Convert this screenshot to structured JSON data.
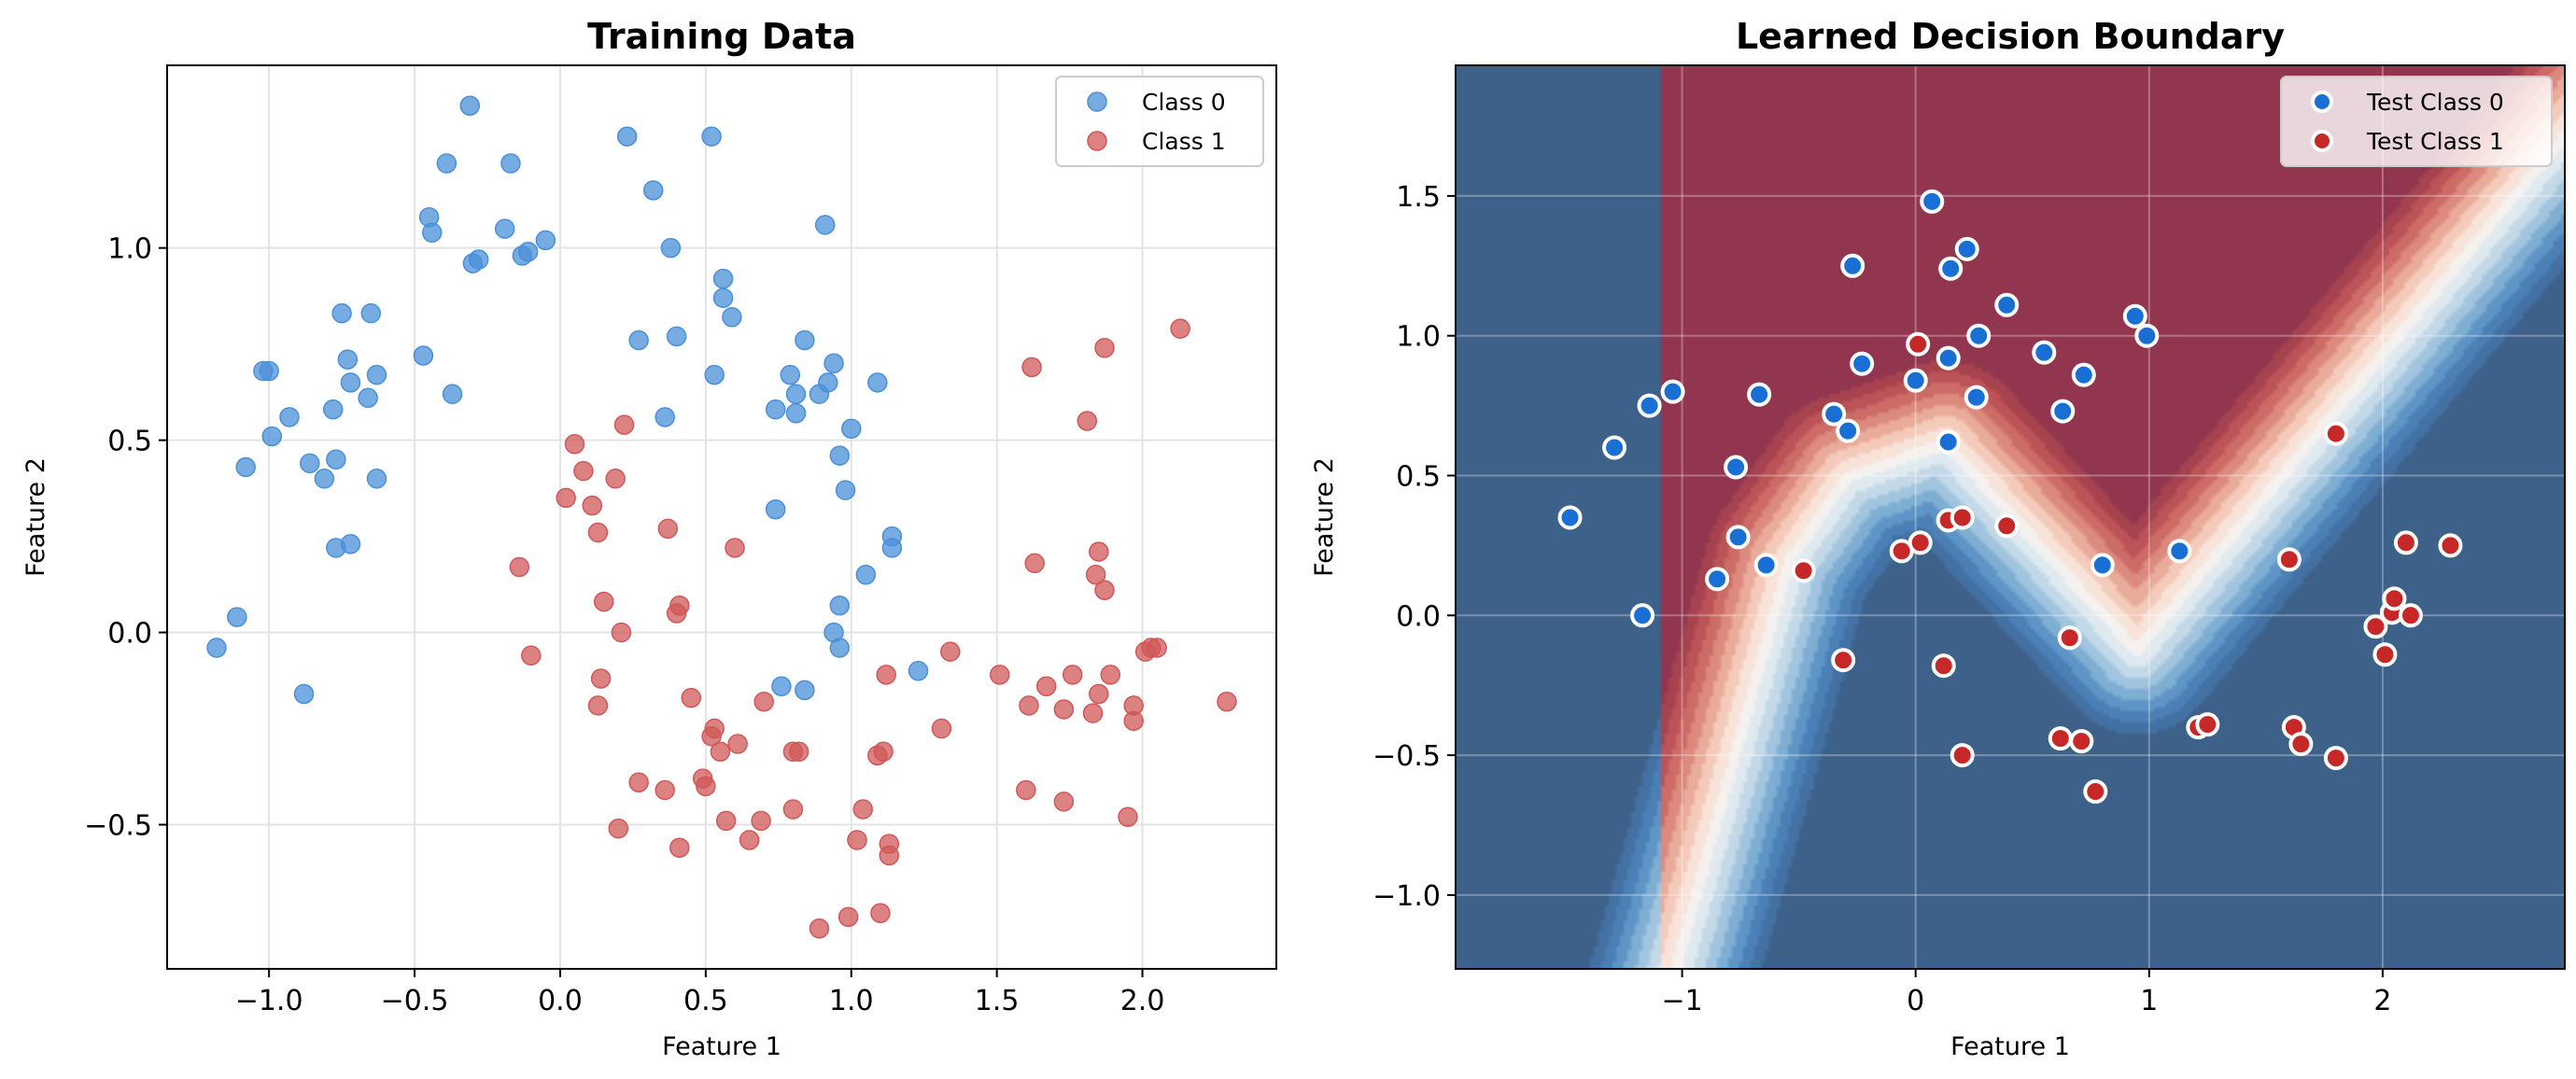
{
  "chart_data": [
    {
      "type": "scatter",
      "title": "Training Data",
      "xlabel": "Feature 1",
      "ylabel": "Feature 2",
      "xlim": [
        -1.35,
        2.46
      ],
      "ylim": [
        -0.875,
        1.475
      ],
      "grid": true,
      "legend_placement": "top-right",
      "xticks": [
        -1.0,
        -0.5,
        0.0,
        0.5,
        1.0,
        1.5,
        2.0
      ],
      "xtick_labels": [
        "−1.0",
        "−0.5",
        "0.0",
        "0.5",
        "1.0",
        "1.5",
        "2.0"
      ],
      "yticks": [
        -0.5,
        0.0,
        0.5,
        1.0
      ],
      "ytick_labels": [
        "−0.5",
        "0.0",
        "0.5",
        "1.0"
      ],
      "series": [
        {
          "name": "Class 0",
          "color": "#4a90d9",
          "points": [
            [
              -1.18,
              -0.04
            ],
            [
              -1.11,
              0.04
            ],
            [
              -1.08,
              0.43
            ],
            [
              -1.02,
              0.68
            ],
            [
              -1.0,
              0.68
            ],
            [
              -0.99,
              0.51
            ],
            [
              -0.93,
              0.56
            ],
            [
              -0.88,
              -0.16
            ],
            [
              -0.86,
              0.44
            ],
            [
              -0.81,
              0.4
            ],
            [
              -0.78,
              0.58
            ],
            [
              -0.77,
              0.45
            ],
            [
              -0.77,
              0.22
            ],
            [
              -0.75,
              0.83
            ],
            [
              -0.73,
              0.71
            ],
            [
              -0.72,
              0.65
            ],
            [
              -0.72,
              0.23
            ],
            [
              -0.66,
              0.61
            ],
            [
              -0.65,
              0.83
            ],
            [
              -0.63,
              0.67
            ],
            [
              -0.63,
              0.4
            ],
            [
              -0.47,
              0.72
            ],
            [
              -0.45,
              1.08
            ],
            [
              -0.44,
              1.04
            ],
            [
              -0.39,
              1.22
            ],
            [
              -0.37,
              0.62
            ],
            [
              -0.31,
              1.37
            ],
            [
              -0.3,
              0.96
            ],
            [
              -0.28,
              0.97
            ],
            [
              -0.19,
              1.05
            ],
            [
              -0.17,
              1.22
            ],
            [
              -0.13,
              0.98
            ],
            [
              -0.11,
              0.99
            ],
            [
              -0.05,
              1.02
            ],
            [
              0.23,
              1.29
            ],
            [
              0.27,
              0.76
            ],
            [
              0.32,
              1.15
            ],
            [
              0.36,
              0.56
            ],
            [
              0.38,
              1.0
            ],
            [
              0.4,
              0.77
            ],
            [
              0.52,
              1.29
            ],
            [
              0.53,
              0.67
            ],
            [
              0.56,
              0.92
            ],
            [
              0.56,
              0.87
            ],
            [
              0.59,
              0.82
            ],
            [
              0.74,
              0.58
            ],
            [
              0.74,
              0.32
            ],
            [
              0.76,
              -0.14
            ],
            [
              0.79,
              0.67
            ],
            [
              0.81,
              0.57
            ],
            [
              0.81,
              0.62
            ],
            [
              0.84,
              -0.15
            ],
            [
              0.84,
              0.76
            ],
            [
              0.89,
              0.62
            ],
            [
              0.91,
              1.06
            ],
            [
              0.92,
              0.65
            ],
            [
              0.94,
              0.7
            ],
            [
              0.94,
              0.0
            ],
            [
              0.96,
              0.46
            ],
            [
              0.96,
              0.07
            ],
            [
              0.96,
              -0.04
            ],
            [
              0.98,
              0.37
            ],
            [
              1.0,
              0.53
            ],
            [
              1.05,
              0.15
            ],
            [
              1.09,
              0.65
            ],
            [
              1.14,
              0.25
            ],
            [
              1.14,
              0.22
            ],
            [
              1.23,
              -0.1
            ]
          ]
        },
        {
          "name": "Class 1",
          "color": "#d05858",
          "points": [
            [
              -0.14,
              0.17
            ],
            [
              -0.1,
              -0.06
            ],
            [
              0.02,
              0.35
            ],
            [
              0.05,
              0.49
            ],
            [
              0.08,
              0.42
            ],
            [
              0.11,
              0.33
            ],
            [
              0.13,
              0.26
            ],
            [
              0.13,
              -0.19
            ],
            [
              0.14,
              -0.12
            ],
            [
              0.15,
              0.08
            ],
            [
              0.19,
              0.4
            ],
            [
              0.2,
              -0.51
            ],
            [
              0.21,
              0.0
            ],
            [
              0.22,
              0.54
            ],
            [
              0.27,
              -0.39
            ],
            [
              0.36,
              -0.41
            ],
            [
              0.37,
              0.27
            ],
            [
              0.4,
              0.05
            ],
            [
              0.41,
              0.07
            ],
            [
              0.41,
              -0.56
            ],
            [
              0.45,
              -0.17
            ],
            [
              0.49,
              -0.38
            ],
            [
              0.5,
              -0.4
            ],
            [
              0.52,
              -0.27
            ],
            [
              0.53,
              -0.25
            ],
            [
              0.55,
              -0.31
            ],
            [
              0.57,
              -0.49
            ],
            [
              0.6,
              0.22
            ],
            [
              0.61,
              -0.29
            ],
            [
              0.65,
              -0.54
            ],
            [
              0.69,
              -0.49
            ],
            [
              0.7,
              -0.18
            ],
            [
              0.8,
              -0.31
            ],
            [
              0.82,
              -0.31
            ],
            [
              0.8,
              -0.46
            ],
            [
              0.89,
              -0.77
            ],
            [
              0.99,
              -0.74
            ],
            [
              1.02,
              -0.54
            ],
            [
              1.04,
              -0.46
            ],
            [
              1.09,
              -0.32
            ],
            [
              1.11,
              -0.31
            ],
            [
              1.1,
              -0.73
            ],
            [
              1.12,
              -0.11
            ],
            [
              1.13,
              -0.55
            ],
            [
              1.13,
              -0.58
            ],
            [
              1.31,
              -0.25
            ],
            [
              1.34,
              -0.05
            ],
            [
              1.51,
              -0.11
            ],
            [
              1.6,
              -0.41
            ],
            [
              1.61,
              -0.19
            ],
            [
              1.62,
              0.69
            ],
            [
              1.63,
              0.18
            ],
            [
              1.67,
              -0.14
            ],
            [
              1.73,
              -0.2
            ],
            [
              1.73,
              -0.44
            ],
            [
              1.76,
              -0.11
            ],
            [
              1.81,
              0.55
            ],
            [
              1.83,
              -0.21
            ],
            [
              1.84,
              0.15
            ],
            [
              1.85,
              0.21
            ],
            [
              1.85,
              -0.16
            ],
            [
              1.87,
              0.74
            ],
            [
              1.87,
              0.11
            ],
            [
              1.89,
              -0.11
            ],
            [
              1.95,
              -0.48
            ],
            [
              1.97,
              -0.19
            ],
            [
              1.97,
              -0.23
            ],
            [
              2.01,
              -0.05
            ],
            [
              2.03,
              -0.04
            ],
            [
              2.05,
              -0.04
            ],
            [
              2.13,
              0.79
            ],
            [
              2.29,
              -0.18
            ]
          ]
        }
      ]
    },
    {
      "type": "scatter",
      "title": "Learned Decision Boundary",
      "xlabel": "Feature 1",
      "ylabel": "Feature 2",
      "xlim": [
        -1.97,
        2.78
      ],
      "ylim": [
        -1.264,
        1.967
      ],
      "grid": true,
      "legend_placement": "top-right",
      "xticks": [
        -1,
        0,
        1,
        2
      ],
      "xtick_labels": [
        "−1",
        "0",
        "1",
        "2"
      ],
      "yticks": [
        -1.0,
        -0.5,
        0.0,
        0.5,
        1.0,
        1.5
      ],
      "ytick_labels": [
        "−1.0",
        "−0.5",
        "0.0",
        "0.5",
        "1.0",
        "1.5"
      ],
      "decision_region": {
        "colormap": "RdBu",
        "class1_color": "#923650",
        "class0_color": "#3d6189",
        "boundary": [
          [
            -1.1,
            -1.45
          ],
          [
            -0.55,
            0.2
          ],
          [
            -0.3,
            0.5
          ],
          [
            0.12,
            0.62
          ],
          [
            0.94,
            -0.12
          ],
          [
            2.9,
            1.85
          ]
        ]
      },
      "series": [
        {
          "name": "Test Class 0",
          "color": "#1a6fd4",
          "points": [
            [
              -1.48,
              0.35
            ],
            [
              -1.29,
              0.6
            ],
            [
              -1.17,
              0.0
            ],
            [
              -1.14,
              0.75
            ],
            [
              -1.04,
              0.8
            ],
            [
              -0.85,
              0.13
            ],
            [
              -0.77,
              0.53
            ],
            [
              -0.76,
              0.28
            ],
            [
              -0.67,
              0.79
            ],
            [
              -0.64,
              0.18
            ],
            [
              -0.35,
              0.72
            ],
            [
              -0.29,
              0.66
            ],
            [
              -0.27,
              1.25
            ],
            [
              -0.23,
              0.9
            ],
            [
              0.0,
              0.84
            ],
            [
              0.07,
              1.48
            ],
            [
              0.14,
              0.62
            ],
            [
              0.14,
              0.92
            ],
            [
              0.15,
              1.24
            ],
            [
              0.22,
              1.31
            ],
            [
              0.26,
              0.78
            ],
            [
              0.27,
              1.0
            ],
            [
              0.39,
              1.11
            ],
            [
              0.55,
              0.94
            ],
            [
              0.63,
              0.73
            ],
            [
              0.72,
              0.86
            ],
            [
              0.8,
              0.18
            ],
            [
              0.94,
              1.07
            ],
            [
              0.99,
              1.0
            ],
            [
              1.13,
              0.23
            ]
          ]
        },
        {
          "name": "Test Class 1",
          "color": "#c62828",
          "points": [
            [
              -0.48,
              0.16
            ],
            [
              -0.31,
              -0.16
            ],
            [
              -0.06,
              0.23
            ],
            [
              0.01,
              0.97
            ],
            [
              0.02,
              0.26
            ],
            [
              0.12,
              -0.18
            ],
            [
              0.14,
              0.34
            ],
            [
              0.2,
              0.35
            ],
            [
              0.2,
              -0.5
            ],
            [
              0.39,
              0.32
            ],
            [
              0.62,
              -0.44
            ],
            [
              0.66,
              -0.08
            ],
            [
              0.71,
              -0.45
            ],
            [
              0.77,
              -0.63
            ],
            [
              1.21,
              -0.4
            ],
            [
              1.25,
              -0.39
            ],
            [
              1.6,
              0.2
            ],
            [
              1.62,
              -0.4
            ],
            [
              1.65,
              -0.46
            ],
            [
              1.8,
              0.65
            ],
            [
              1.8,
              -0.51
            ],
            [
              1.97,
              -0.04
            ],
            [
              2.01,
              -0.14
            ],
            [
              2.04,
              0.01
            ],
            [
              2.05,
              0.06
            ],
            [
              2.1,
              0.26
            ],
            [
              2.12,
              0.0
            ],
            [
              2.29,
              0.25
            ]
          ]
        }
      ]
    }
  ]
}
